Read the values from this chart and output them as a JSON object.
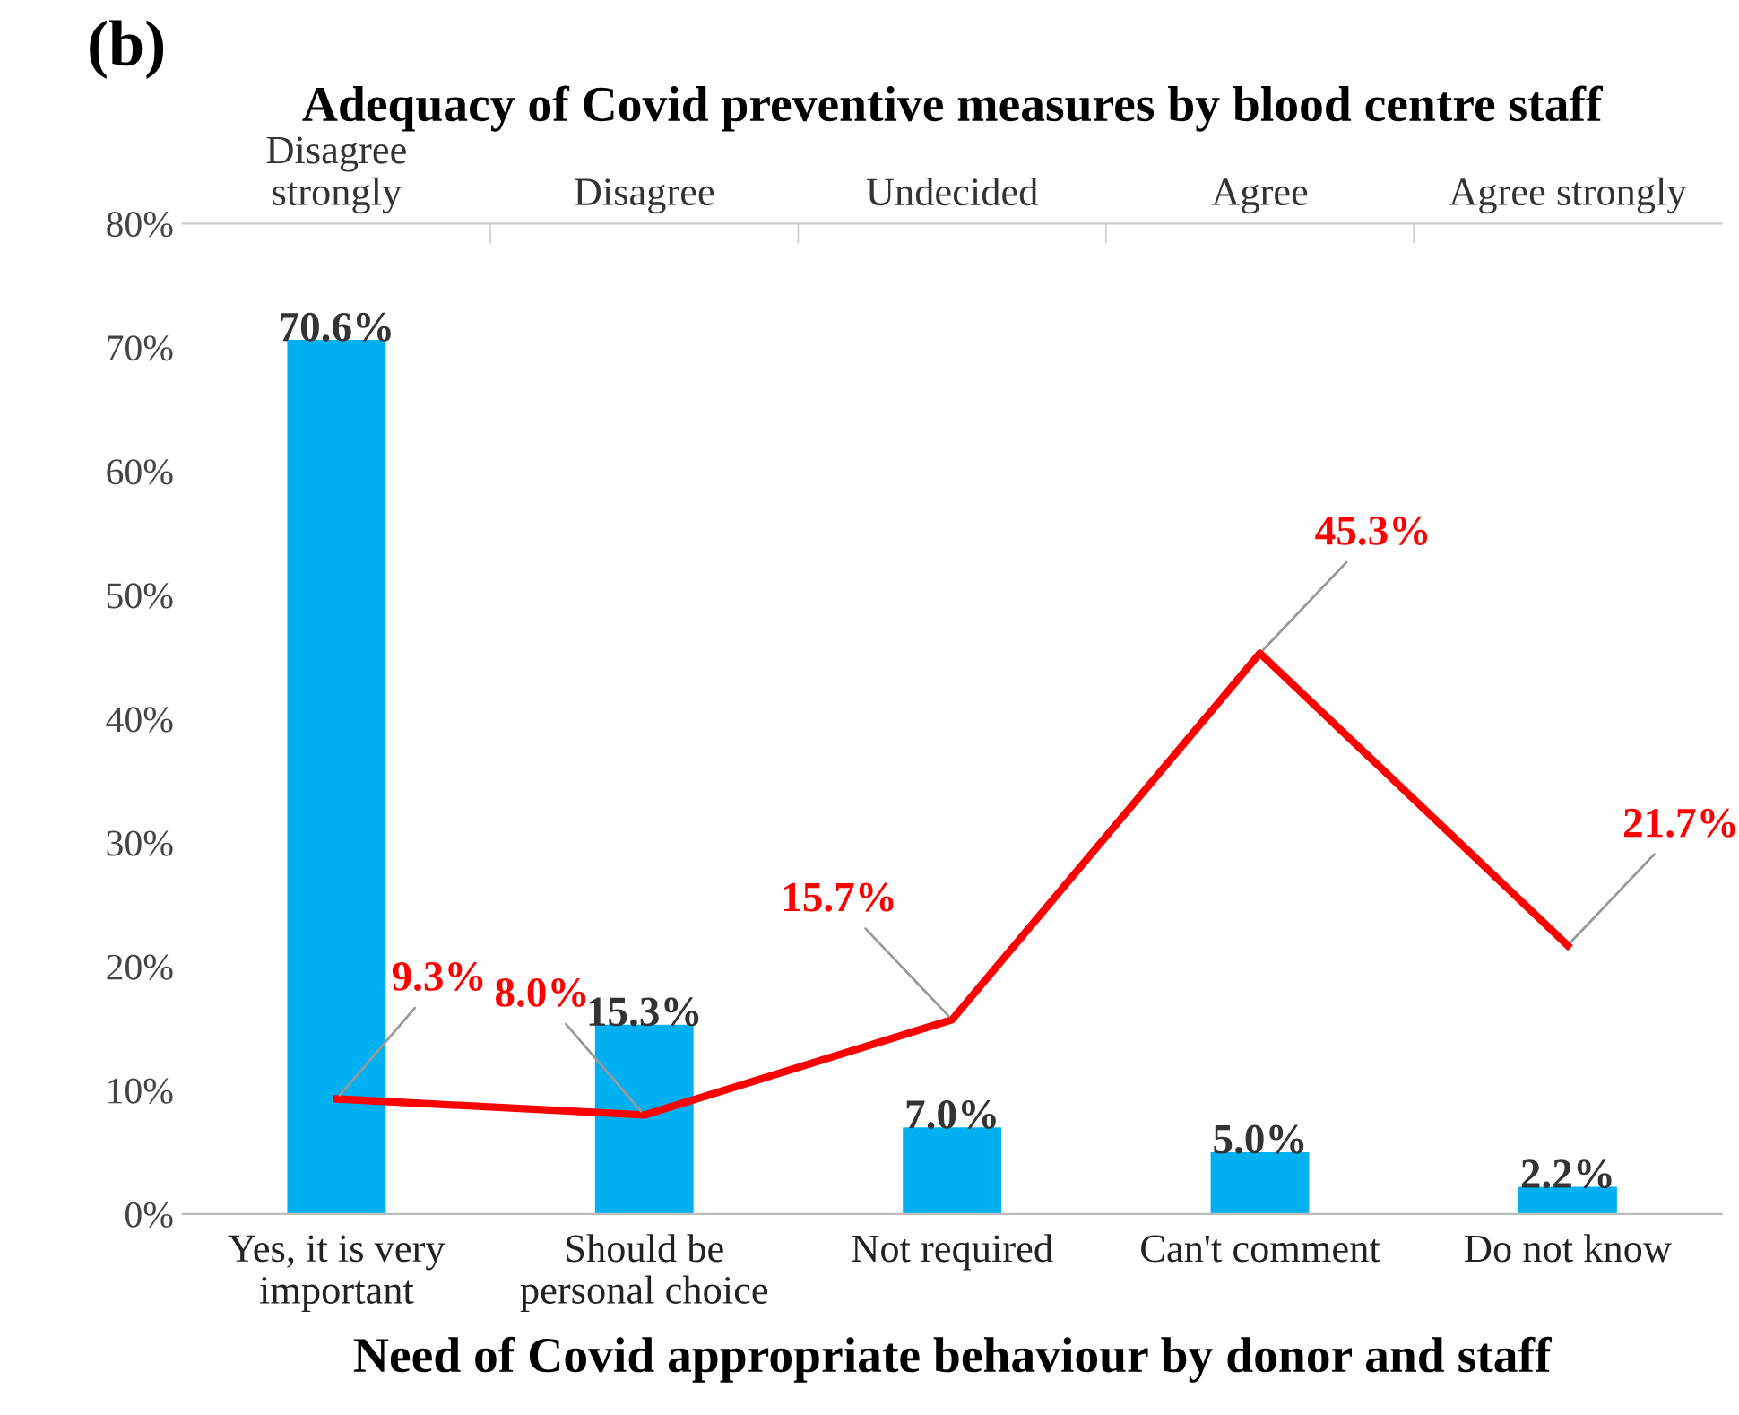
{
  "chart_data": {
    "type": "bar",
    "title": "(b)",
    "x2label": "Adequacy of Covid preventive measures by blood centre staff",
    "xlabel": "Need of Covid appropriate behaviour by donor and staff",
    "categories": [
      "Yes, it is very\nimportant",
      "Should be\npersonal choice",
      "Not required",
      "Can't comment",
      "Do not know"
    ],
    "annotations": [
      "Disagree\nstrongly",
      "Disagree",
      "Undecided",
      "Agree",
      "Agree strongly"
    ],
    "series": [
      {
        "color": "#00b0f0",
        "values": [
          70.6,
          15.3,
          7.0,
          5.0,
          2.2
        ],
        "value_labels": [
          "70.6%",
          "15.3%",
          "7.0%",
          "5.0%",
          "2.2%"
        ]
      },
      {
        "type": "line",
        "color": "#ff0000",
        "values": [
          9.3,
          8.0,
          15.7,
          45.3,
          21.7
        ],
        "value_labels": [
          "9.3%",
          "8.0%",
          "15.7%",
          "45.3%",
          "21.7%"
        ]
      }
    ],
    "ylim": [
      0,
      80
    ],
    "yticks": [
      {
        "value": 0,
        "label": "0%"
      },
      {
        "value": 10,
        "label": "10%"
      },
      {
        "value": 20,
        "label": "20%"
      },
      {
        "value": 30,
        "label": "30%"
      },
      {
        "value": 40,
        "label": "40%"
      },
      {
        "value": 50,
        "label": "50%"
      },
      {
        "value": 60,
        "label": "60%"
      },
      {
        "value": 70,
        "label": "70%"
      },
      {
        "value": 80,
        "label": "80%"
      }
    ],
    "grid": false,
    "legend": false,
    "marker": "none",
    "line_style": "solid"
  }
}
